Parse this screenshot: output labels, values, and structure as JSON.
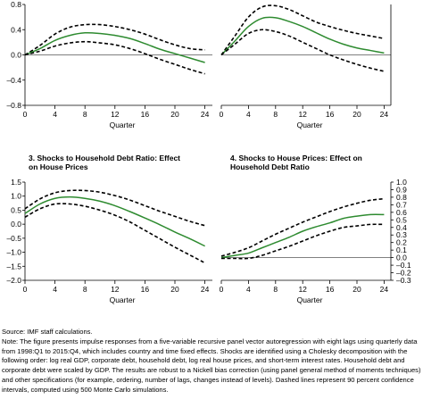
{
  "chart_data": [
    {
      "type": "line",
      "title": "",
      "xlabel": "Quarter",
      "ylabel": "",
      "xlim": [
        0,
        25
      ],
      "ylim": [
        -0.8,
        0.8
      ],
      "x_ticks": [
        0,
        4,
        8,
        12,
        16,
        20,
        24
      ],
      "y_ticks": [
        -0.8,
        -0.4,
        0.0,
        0.4,
        0.8
      ],
      "y_tick_labels": [
        "–0.8",
        "–0.4",
        "0.0",
        "0.4",
        "0.8"
      ],
      "y_axis_side": "left",
      "zero_line": true,
      "x": [
        0,
        2,
        4,
        6,
        8,
        10,
        12,
        14,
        16,
        18,
        20,
        22,
        24
      ],
      "series": [
        {
          "role": "upper",
          "style": "dashed",
          "color": "#000000",
          "values": [
            0,
            0.15,
            0.33,
            0.44,
            0.48,
            0.48,
            0.45,
            0.4,
            0.33,
            0.24,
            0.16,
            0.1,
            0.08
          ]
        },
        {
          "role": "estimate",
          "style": "solid",
          "color": "#2e8b30",
          "values": [
            0,
            0.1,
            0.23,
            0.31,
            0.35,
            0.34,
            0.31,
            0.26,
            0.18,
            0.09,
            0.02,
            -0.05,
            -0.12
          ]
        },
        {
          "role": "lower",
          "style": "dashed",
          "color": "#000000",
          "values": [
            0,
            0.06,
            0.14,
            0.19,
            0.21,
            0.19,
            0.16,
            0.1,
            0.02,
            -0.07,
            -0.15,
            -0.23,
            -0.3
          ]
        }
      ]
    },
    {
      "type": "line",
      "title": "",
      "xlabel": "Quarter",
      "ylabel": "",
      "xlim": [
        0,
        25
      ],
      "ylim": [
        -0.8,
        0.8
      ],
      "x_ticks": [
        0,
        4,
        8,
        12,
        16,
        20,
        24
      ],
      "y_ticks": [],
      "y_tick_labels": [],
      "y_axis_side": "right",
      "zero_line": true,
      "x": [
        0,
        2,
        4,
        6,
        8,
        10,
        12,
        14,
        16,
        18,
        20,
        22,
        24
      ],
      "series": [
        {
          "role": "upper",
          "style": "dashed",
          "color": "#000000",
          "values": [
            0,
            0.3,
            0.6,
            0.76,
            0.78,
            0.72,
            0.62,
            0.52,
            0.45,
            0.39,
            0.34,
            0.3,
            0.26
          ]
        },
        {
          "role": "estimate",
          "style": "solid",
          "color": "#2e8b30",
          "values": [
            0,
            0.22,
            0.45,
            0.58,
            0.59,
            0.53,
            0.45,
            0.35,
            0.25,
            0.17,
            0.11,
            0.07,
            0.03
          ]
        },
        {
          "role": "lower",
          "style": "dashed",
          "color": "#000000",
          "values": [
            0,
            0.17,
            0.34,
            0.4,
            0.37,
            0.3,
            0.2,
            0.1,
            0.0,
            -0.08,
            -0.15,
            -0.21,
            -0.26
          ]
        }
      ]
    },
    {
      "type": "line",
      "title": "3. Shocks to Household Debt Ratio: Effect on House Prices",
      "xlabel": "Quarter",
      "ylabel": "",
      "xlim": [
        0,
        25
      ],
      "ylim": [
        -2.0,
        1.5
      ],
      "x_ticks": [
        0,
        4,
        8,
        12,
        16,
        20,
        24
      ],
      "y_ticks": [
        -2.0,
        -1.5,
        -1.0,
        -0.5,
        0.0,
        0.5,
        1.0,
        1.5
      ],
      "y_tick_labels": [
        "–2.0",
        "–1.5",
        "–1.0",
        "–0.5",
        "0.0",
        "0.5",
        "1.0",
        "1.5"
      ],
      "y_axis_side": "left",
      "zero_line": false,
      "x": [
        0,
        2,
        4,
        6,
        8,
        10,
        12,
        14,
        16,
        18,
        20,
        22,
        24
      ],
      "series": [
        {
          "role": "upper",
          "style": "dashed",
          "color": "#000000",
          "values": [
            0.55,
            0.9,
            1.12,
            1.2,
            1.2,
            1.14,
            1.02,
            0.86,
            0.66,
            0.46,
            0.28,
            0.1,
            -0.05
          ]
        },
        {
          "role": "estimate",
          "style": "solid",
          "color": "#2e8b30",
          "values": [
            0.38,
            0.72,
            0.92,
            0.97,
            0.92,
            0.82,
            0.66,
            0.45,
            0.22,
            -0.02,
            -0.28,
            -0.52,
            -0.78
          ]
        },
        {
          "role": "lower",
          "style": "dashed",
          "color": "#000000",
          "values": [
            0.25,
            0.55,
            0.72,
            0.72,
            0.64,
            0.5,
            0.32,
            0.08,
            -0.22,
            -0.52,
            -0.82,
            -1.1,
            -1.38
          ]
        }
      ]
    },
    {
      "type": "line",
      "title": "4. Shocks to House Prices: Effect on Household Debt Ratio",
      "xlabel": "Quarter",
      "ylabel": "",
      "xlim": [
        0,
        25
      ],
      "ylim": [
        -0.3,
        1.0
      ],
      "x_ticks": [
        0,
        4,
        8,
        12,
        16,
        20,
        24
      ],
      "y_ticks": [
        -0.3,
        -0.2,
        -0.1,
        0.0,
        0.1,
        0.2,
        0.3,
        0.4,
        0.5,
        0.6,
        0.7,
        0.8,
        0.9,
        1.0
      ],
      "y_tick_labels": [
        "–0.3",
        "–0.2",
        "–0.1",
        "0.0",
        "0.1",
        "0.2",
        "0.3",
        "0.4",
        "0.5",
        "0.6",
        "0.7",
        "0.8",
        "0.9",
        "1.0"
      ],
      "y_axis_side": "right",
      "zero_line": true,
      "x": [
        0,
        2,
        4,
        6,
        8,
        10,
        12,
        14,
        16,
        18,
        20,
        22,
        24
      ],
      "series": [
        {
          "role": "upper",
          "style": "dashed",
          "color": "#000000",
          "values": [
            0.02,
            0.07,
            0.13,
            0.22,
            0.31,
            0.39,
            0.47,
            0.54,
            0.61,
            0.67,
            0.72,
            0.76,
            0.78
          ]
        },
        {
          "role": "estimate",
          "style": "solid",
          "color": "#2e8b30",
          "values": [
            0.0,
            0.03,
            0.06,
            0.13,
            0.2,
            0.27,
            0.35,
            0.41,
            0.46,
            0.52,
            0.55,
            0.57,
            0.57
          ]
        },
        {
          "role": "lower",
          "style": "dashed",
          "color": "#000000",
          "values": [
            -0.01,
            -0.01,
            -0.01,
            0.03,
            0.09,
            0.15,
            0.22,
            0.29,
            0.35,
            0.4,
            0.42,
            0.44,
            0.44
          ]
        }
      ]
    }
  ],
  "notes": {
    "source": "Source: IMF staff calculations.",
    "note": "Note: The figure presents impulse responses from a five-variable recursive panel vector autoregression with eight lags using quarterly data from 1998:Q1 to 2015:Q4, which includes country and time fixed effects. Shocks are identified using a Cholesky decomposition with the following order: log real GDP, corporate debt, household debt, log real house prices, and short-term interest rates. Household debt and corporate debt were scaled by GDP. The results are robust to a Nickell bias correction (using panel general method of moments techniques) and other specifications (for example, ordering, number of lags, changes instead of levels). Dashed lines represent 90 percent confidence intervals, computed using 500 Monte Carlo simulations."
  }
}
